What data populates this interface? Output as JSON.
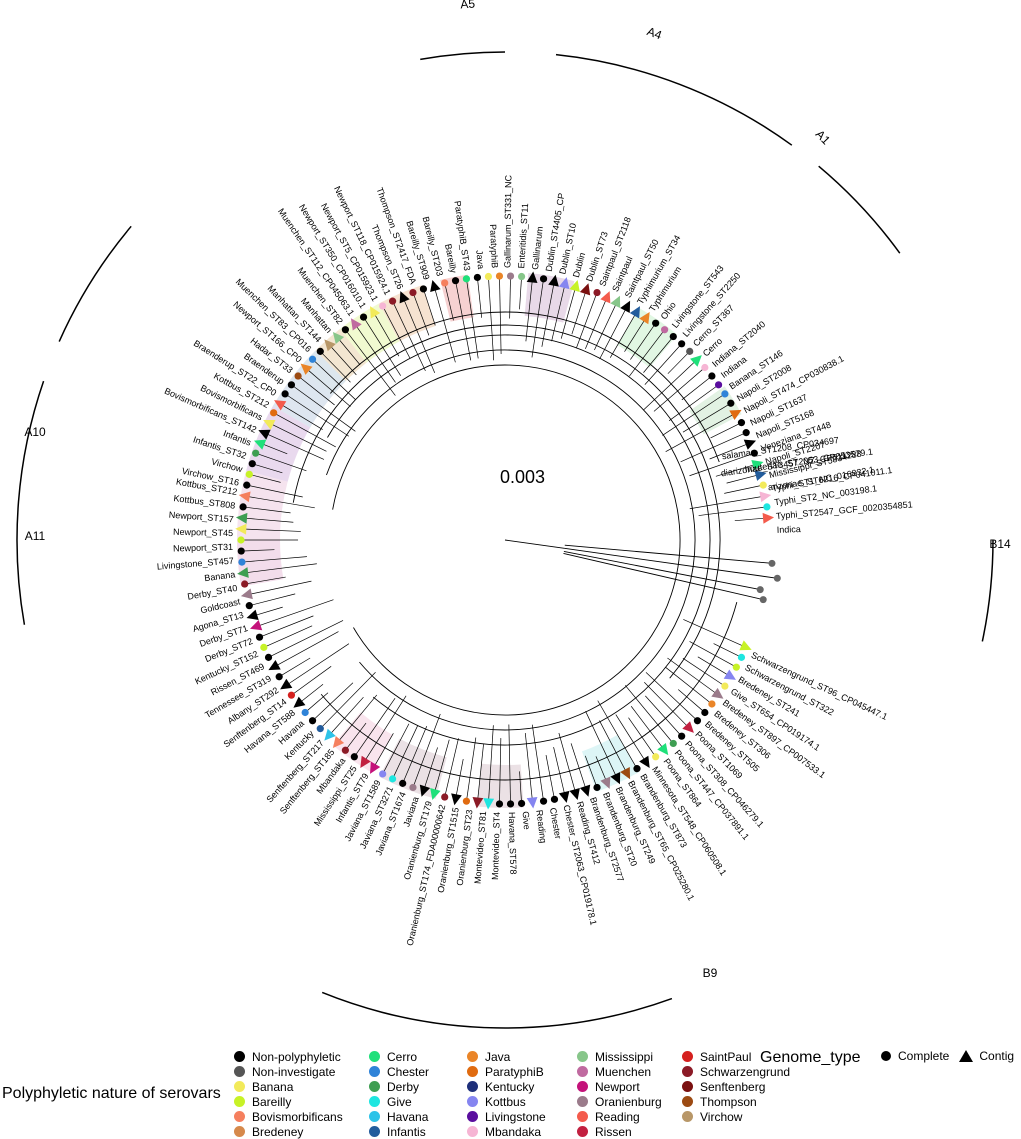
{
  "scale_label": "0.003",
  "clade_labels": [
    "A5",
    "A4",
    "A1",
    "A10",
    "A11",
    "B14",
    "B9"
  ],
  "outgroup_labels": [
    "salamae_ST1208_CP034697",
    "houtenae_ST2053_CP053579.1",
    "diarizonae_ST3457_NZ_CP011288",
    "arizonae_ST6216_CP041011.1"
  ],
  "tip_labels_upper": [
    "Virchow_ST16",
    "Virchow",
    "Infantis_ST32",
    "Infantis",
    "Bovismorbificans_ST142",
    "Bovismorbificans",
    "Kottbus_ST212",
    "Braenderup_ST22_CP0",
    "Braenderup",
    "Hadar_ST33",
    "Newport_ST166_CP0",
    "Muenchen_ST83_CP016",
    "Manhattan_ST144",
    "Manhattan",
    "Muenchen_ST82",
    "Muenchen_ST112_CP045063.1",
    "Newport_ST350_CP016010.1",
    "Newport_ST5_CP015923.1",
    "Newport_ST118_CP015924.1",
    "Thompson_ST26",
    "Thompson_ST2417_FDA",
    "Bareilly_ST909",
    "Bareilly_ST203",
    "Bareilly",
    "ParatyphiB_ST43",
    "Java",
    "ParatyphiB",
    "Gallinarum_ST331_NC",
    "Enteritidis_ST11",
    "Gallinarum",
    "Dublin_ST4405_CP",
    "Dublin_ST10",
    "Dublin",
    "Dublin_ST73",
    "Saintpaul_ST2118",
    "Saintpaul",
    "Saintpaul_ST50",
    "Typhimurium_ST34",
    "Typhimurium",
    "Ohio",
    "Livingstone_ST543",
    "Livingstone_ST2250",
    "Cerro_ST367",
    "Cerro",
    "Indiana_ST2040",
    "Indiana",
    "Banana_ST146",
    "Napoli_ST2008",
    "Napoli_ST474_CP030838.1",
    "Napoli_ST1637",
    "Napoli_ST5168",
    "Veneziana_ST448",
    "Napoli_ST2207",
    "Mississippi_ST5834",
    "Typhi_ST1_NC_016832.1",
    "Typhi_ST2_NC_003198.1",
    "Typhi_ST2547_GCF_0020354851",
    "Indica"
  ],
  "tip_labels_lower": [
    "Schwarzengrund_ST96_CP045447.1",
    "Schwarzengrund_ST322",
    "Bredeney_ST241",
    "Give_ST654_CP019174.1",
    "Bredeney_ST897_CP007533.1",
    "Bredeney_ST306",
    "Bredeney_ST505",
    "Poona_ST1069",
    "Poona_ST308_CP046279.1",
    "Poona_ST447_CP037891.1",
    "Poona_ST864",
    "Minnesota_ST548_CP060508.1",
    "Brandenburg_ST873",
    "Brandenburg_ST65_CP025280.1",
    "Brandenburg_ST249",
    "Brandenburg_ST20",
    "Brandenburg_ST2577",
    "Reading_ST412",
    "Chester_ST2063_CP019178.1",
    "Chester",
    "Reading",
    "Give",
    "Havana_ST578",
    "Montevideo_ST4",
    "Montevideo_ST81",
    "Oranienburg_ST23",
    "Oranienburg_ST1515",
    "Oranienburg_ST174_FDA00000642",
    "Oranienburg_ST179",
    "Javiana",
    "Javiana_ST1674",
    "Javiana_ST3271",
    "Javiana_ST1589",
    "Infantis_ST79",
    "Mississippi_ST25",
    "Mbandaka",
    "Senftenberg_ST185",
    "Senftenberg_ST217",
    "Kentucky",
    "Havana",
    "Havana_ST588",
    "Senftenberg_ST14",
    "Albany_ST292",
    "Tennessee_ST319",
    "Rissen_ST469",
    "Kentucky_ST152",
    "Derby_ST72",
    "Derby_ST71",
    "Agona_ST13",
    "Goldcoast",
    "Derby_ST40",
    "Banana",
    "Livingstone_ST457",
    "Newport_ST31",
    "Newport_ST45",
    "Newport_ST157",
    "Kottbus_ST808",
    "Kottbus_ST212"
  ],
  "legend": {
    "title": "Polyphyletic nature of serovars",
    "items": [
      {
        "label": "Non-polyphyletic",
        "color": "#000000"
      },
      {
        "label": "Non-investigate",
        "color": "#555555"
      },
      {
        "label": "Banana",
        "color": "#f2ea5a"
      },
      {
        "label": "Bareilly",
        "color": "#c7f227"
      },
      {
        "label": "Bovismorbificans",
        "color": "#f57f5e"
      },
      {
        "label": "Bredeney",
        "color": "#d6894b"
      },
      {
        "label": "Cerro",
        "color": "#1fe07a"
      },
      {
        "label": "Chester",
        "color": "#2f83d8"
      },
      {
        "label": "Derby",
        "color": "#3e9e52"
      },
      {
        "label": "Give",
        "color": "#1ee6e0"
      },
      {
        "label": "Havana",
        "color": "#2dc3e8"
      },
      {
        "label": "Infantis",
        "color": "#225c9c"
      },
      {
        "label": "Java",
        "color": "#ea8528"
      },
      {
        "label": "ParatyphiB",
        "color": "#e06b10"
      },
      {
        "label": "Kentucky",
        "color": "#1e2f7a"
      },
      {
        "label": "Kottbus",
        "color": "#8585f0"
      },
      {
        "label": "Livingstone",
        "color": "#5a0e9e"
      },
      {
        "label": "Mbandaka",
        "color": "#f6b5d4"
      },
      {
        "label": "Mississippi",
        "color": "#87c68a"
      },
      {
        "label": "Muenchen",
        "color": "#c06aa0"
      },
      {
        "label": "Newport",
        "color": "#c4127a"
      },
      {
        "label": "Oranienburg",
        "color": "#9b7b8b"
      },
      {
        "label": "Reading",
        "color": "#f45b4c"
      },
      {
        "label": "Rissen",
        "color": "#c22040"
      },
      {
        "label": "SaintPaul",
        "color": "#d5201e"
      },
      {
        "label": "Schwarzengrund",
        "color": "#8b1a26"
      },
      {
        "label": "Senftenberg",
        "color": "#7a1010"
      },
      {
        "label": "Thompson",
        "color": "#9c4a12"
      },
      {
        "label": "Virchow",
        "color": "#b89768"
      }
    ]
  },
  "genome_legend": {
    "title": "Genome_type",
    "items": [
      {
        "label": "Complete",
        "shape": "circle"
      },
      {
        "label": "Contig",
        "shape": "triangle"
      }
    ]
  }
}
